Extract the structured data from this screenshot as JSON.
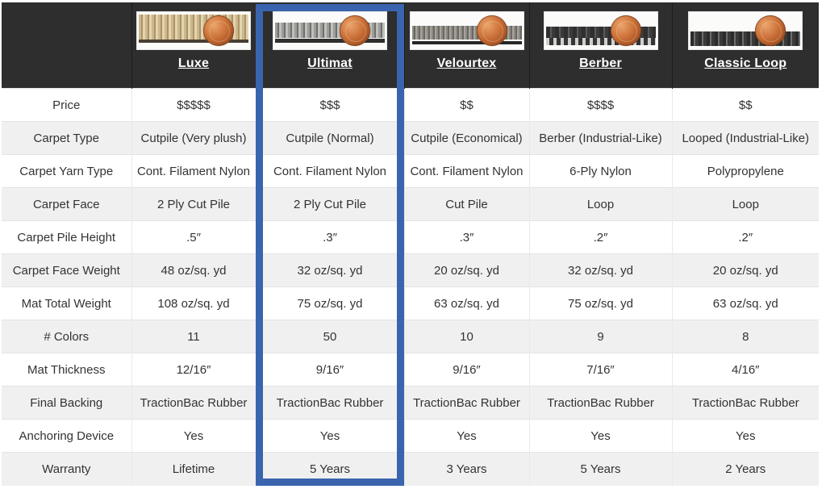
{
  "header": {
    "columns": [
      {
        "name": "Luxe",
        "image_alt": "luxe-carpet-cross-section-with-penny"
      },
      {
        "name": "Ultimat",
        "image_alt": "ultimat-carpet-cross-section-with-penny"
      },
      {
        "name": "Velourtex",
        "image_alt": "velourtex-carpet-cross-section-with-penny"
      },
      {
        "name": "Berber",
        "image_alt": "berber-carpet-cross-section-with-penny"
      },
      {
        "name": "Classic Loop",
        "image_alt": "classic-loop-carpet-cross-section-with-penny"
      }
    ]
  },
  "rows": [
    {
      "label": "Price",
      "values": [
        "$$$$$",
        "$$$",
        "$$",
        "$$$$",
        "$$"
      ]
    },
    {
      "label": "Carpet Type",
      "values": [
        "Cutpile (Very plush)",
        "Cutpile (Normal)",
        "Cutpile (Economical)",
        "Berber (Industrial-Like)",
        "Looped (Industrial-Like)"
      ]
    },
    {
      "label": "Carpet Yarn Type",
      "values": [
        "Cont. Filament Nylon",
        "Cont. Filament Nylon",
        "Cont. Filament Nylon",
        "6-Ply Nylon",
        "Polypropylene"
      ]
    },
    {
      "label": "Carpet Face",
      "values": [
        "2 Ply Cut Pile",
        "2 Ply Cut Pile",
        "Cut Pile",
        "Loop",
        "Loop"
      ]
    },
    {
      "label": "Carpet Pile Height",
      "values": [
        ".5″",
        ".3″",
        ".3″",
        ".2″",
        ".2″"
      ]
    },
    {
      "label": "Carpet Face Weight",
      "values": [
        "48 oz/sq. yd",
        "32 oz/sq. yd",
        "20 oz/sq. yd",
        "32 oz/sq. yd",
        "20 oz/sq. yd"
      ]
    },
    {
      "label": "Mat Total Weight",
      "values": [
        "108 oz/sq. yd",
        "75 oz/sq. yd",
        "63 oz/sq. yd",
        "75 oz/sq. yd",
        "63 oz/sq. yd"
      ]
    },
    {
      "label": "# Colors",
      "values": [
        "11",
        "50",
        "10",
        "9",
        "8"
      ]
    },
    {
      "label": "Mat Thickness",
      "values": [
        "12/16″",
        "9/16″",
        "9/16″",
        "7/16″",
        "4/16″"
      ]
    },
    {
      "label": "Final Backing",
      "values": [
        "TractionBac Rubber",
        "TractionBac Rubber",
        "TractionBac Rubber",
        "TractionBac Rubber",
        "TractionBac Rubber"
      ]
    },
    {
      "label": "Anchoring Device",
      "values": [
        "Yes",
        "Yes",
        "Yes",
        "Yes",
        "Yes"
      ]
    },
    {
      "label": "Warranty",
      "values": [
        "Lifetime",
        "5 Years",
        "3 Years",
        "5 Years",
        "2 Years"
      ]
    }
  ],
  "highlight": {
    "column": "Ultimat",
    "border_color": "#3a64ae"
  },
  "colors": {
    "header_background": "#2e2e2e",
    "alternate_row_background": "#f0f0f1",
    "grid_line": "#e4e4e4",
    "body_text": "#333333",
    "header_text": "#ffffff",
    "penny_copper": "#ca7038"
  }
}
